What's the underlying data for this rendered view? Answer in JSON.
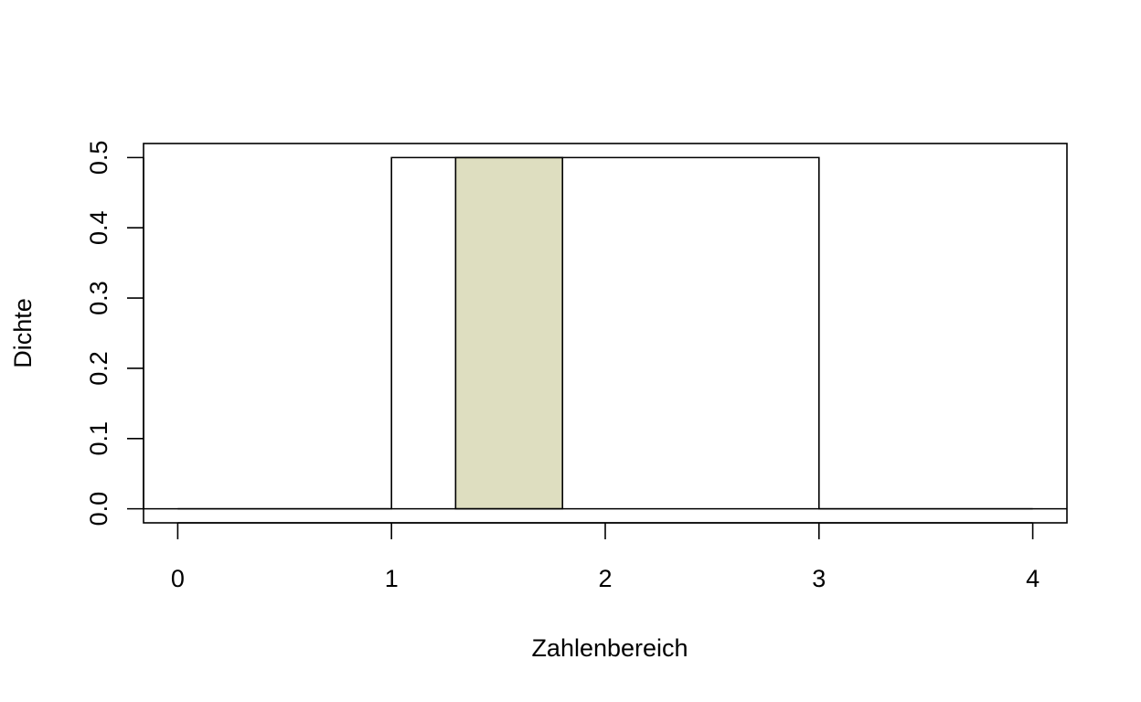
{
  "chart_data": {
    "type": "area",
    "title": "",
    "xlabel": "Zahlenbereich",
    "ylabel": "Dichte",
    "xlim": [
      -0.16,
      4.16
    ],
    "ylim": [
      -0.02,
      0.52
    ],
    "x_ticks": [
      0,
      1,
      2,
      3,
      4
    ],
    "y_ticks": [
      0.0,
      0.1,
      0.2,
      0.3,
      0.4,
      0.5
    ],
    "grid": false,
    "density": {
      "x": [
        0,
        1,
        1,
        3,
        3,
        4
      ],
      "y": [
        0,
        0,
        0.5,
        0.5,
        0,
        0
      ]
    },
    "shaded_region": {
      "x_from": 1.3,
      "x_to": 1.8,
      "height": 0.5,
      "color": "#dedec0"
    },
    "reference_line_y": 0
  }
}
